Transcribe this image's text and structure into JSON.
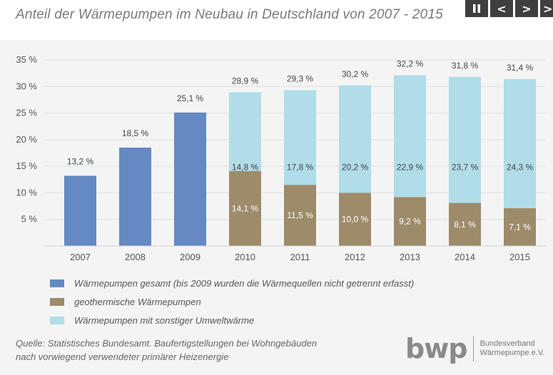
{
  "title": "Anteil der Wärmepumpen im Neubau in Deutschland von 2007 - 2015",
  "nav": {
    "pause_icon": "pause-icon",
    "prev_label": "<",
    "next_label": ">",
    "more_label": ">"
  },
  "colors": {
    "gesamt": "#6489c3",
    "geo": "#9d8b6a",
    "sonstige": "#b0dde8",
    "panel": "#f4f4f4",
    "grid": "#e0e0e0"
  },
  "chart_data": {
    "type": "bar",
    "categories": [
      "2007",
      "2008",
      "2009",
      "2010",
      "2011",
      "2012",
      "2013",
      "2014",
      "2015"
    ],
    "series": [
      {
        "name": "Wärmepumpen gesamt (bis 2009 wurden die Wärmequellen nicht getrennt erfasst)",
        "values": [
          13.2,
          18.5,
          25.1,
          null,
          null,
          null,
          null,
          null,
          null
        ]
      },
      {
        "name": "geothermische Wärmepumpen",
        "values": [
          null,
          null,
          null,
          14.1,
          11.5,
          10.0,
          9.2,
          8.1,
          7.1
        ]
      },
      {
        "name": "Wärmepumpen mit sonstiger Umweltwärme",
        "values": [
          null,
          null,
          null,
          14.8,
          17.8,
          20.2,
          22.9,
          23.7,
          24.3
        ]
      }
    ],
    "labels": {
      "gesamt": [
        "13,2 %",
        "18,5 %",
        "25,1 %",
        null,
        null,
        null,
        null,
        null,
        null
      ],
      "geo": [
        null,
        null,
        null,
        "14,1 %",
        "11,5 %",
        "10,0 %",
        "9,2 %",
        "8,1 %",
        "7,1 %"
      ],
      "sonstige": [
        null,
        null,
        null,
        "14,8 %",
        "17,8 %",
        "20,2 %",
        "22,9 %",
        "23,7 %",
        "24,3 %"
      ],
      "totals": [
        null,
        null,
        null,
        "28,9 %",
        "29,3 %",
        "30,2 %",
        "32,2 %",
        "31,8 %",
        "31,4 %"
      ]
    },
    "yticks": [
      5,
      10,
      15,
      20,
      25,
      30,
      35
    ],
    "ytick_labels": [
      "5 %",
      "10 %",
      "15 %",
      "20 %",
      "25 %",
      "30 %",
      "35 %"
    ],
    "ylim": [
      0,
      35
    ],
    "stacked": true,
    "grid": true,
    "legend_position": "bottom"
  },
  "legend": [
    {
      "label": "Wärmepumpen gesamt (bis 2009 wurden die Wärmequellen nicht getrennt erfasst)"
    },
    {
      "label": "geothermische Wärmepumpen"
    },
    {
      "label": "Wärmepumpen mit sonstiger Umweltwärme"
    }
  ],
  "source": {
    "line1": "Quelle: Statistisches Bundesamt. Baufertigstellungen bei Wohngebäuden",
    "line2": "nach vorwiegend verwendeter primärer Heizenergie"
  },
  "logo": {
    "mark": "bwp",
    "line1": "Bundesverband",
    "line2": "Wärmepumpe e.V."
  }
}
